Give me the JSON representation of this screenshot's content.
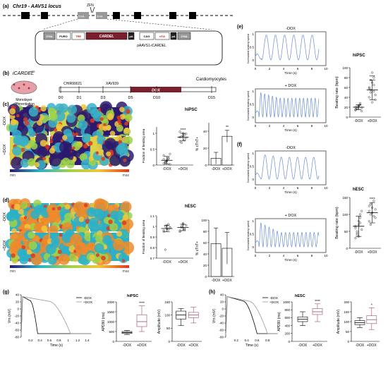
{
  "panels": {
    "a": {
      "label": "(a)",
      "title": "Chr19 - AAVS1 locus",
      "zfn": "ZFN",
      "boxes": [
        "5'HA",
        "PURO",
        "TRE",
        "CARDEL",
        "pA",
        "CAG",
        "rtTA",
        "pA",
        "3'HA"
      ],
      "homology": [
        "5'HA",
        "3'HA"
      ],
      "plasmid": "pAAVS1-iCARDEL"
    },
    "b": {
      "label": "(b)",
      "construct": "iCARDEL",
      "construct_sup": "OE",
      "dish_label": [
        "Monolayer",
        "differentiation"
      ],
      "drugs": [
        "CHIR99021",
        "XAV939",
        "DOX"
      ],
      "days": [
        "D0",
        "D1",
        "D3",
        "D5",
        "D10",
        "D15"
      ],
      "end_label": "Cardiomyocytes"
    },
    "c": {
      "label": "(c)",
      "rows": [
        "-DOX",
        "+DOX"
      ],
      "cell": "hiPSC",
      "colorbar": {
        "min": "min",
        "max": "max"
      }
    },
    "d": {
      "label": "(d)",
      "rows": [
        "-DOX",
        "+DOX"
      ],
      "cell": "hESC",
      "colorbar": {
        "min": "min",
        "max": "max"
      }
    },
    "e": {
      "label": "(e)",
      "top": "-DOX",
      "bottom": "+ DOX",
      "cell": "hiPSC"
    },
    "f": {
      "label": "(f)",
      "top": "-DOX",
      "bottom": "+ DOX",
      "cell": "hESC"
    },
    "g": {
      "label": "(g)",
      "cell": "hiPSC"
    },
    "h": {
      "label": "(h)",
      "cell": "hESC"
    }
  },
  "chart_data": [
    {
      "id": "c_area",
      "type": "scatter",
      "ylabel": "Fraction of beating area",
      "categories": [
        "-DOX",
        "+DOX"
      ],
      "ylim": [
        0,
        1.2
      ],
      "yticks": [
        0,
        0.5,
        1.0
      ],
      "means": [
        0.15,
        0.88
      ],
      "sd": [
        0.12,
        0.12
      ],
      "sig": "****",
      "points": [
        [
          0.05,
          0.1,
          0.12,
          0.2,
          0.35,
          0.18,
          0.08,
          0.15,
          0.22,
          0.02,
          0.3,
          0.1
        ],
        [
          0.75,
          0.9,
          1.0,
          0.95,
          0.85,
          1.05,
          0.7,
          0.92,
          0.8,
          0.98,
          0.88
        ]
      ]
    },
    {
      "id": "c_ctnt",
      "type": "bar",
      "ylabel": "% cTnT+",
      "categories": [
        "-DOX",
        "+DOX"
      ],
      "ylim": [
        0,
        50
      ],
      "yticks": [
        0,
        20,
        40
      ],
      "values": [
        8,
        34
      ],
      "err": [
        7,
        7
      ],
      "sig": "**"
    },
    {
      "id": "d_area",
      "type": "scatter",
      "ylabel": "Fraction of beating area",
      "categories": [
        "-DOX",
        "+DOX"
      ],
      "ylim": [
        0.7,
        1.1
      ],
      "yticks": [
        0.7,
        0.8,
        0.9,
        1.0,
        1.1
      ],
      "means": [
        0.98,
        0.99
      ],
      "sd": [
        0.03,
        0.03
      ],
      "points": [
        [
          0.95,
          1.0,
          0.98,
          1.02,
          0.99,
          0.96,
          0.78,
          1.01,
          0.97,
          0.99
        ],
        [
          0.96,
          1.0,
          1.02,
          0.98,
          1.01,
          0.95,
          0.99,
          1.03,
          0.97
        ]
      ]
    },
    {
      "id": "d_ctnt",
      "type": "bar",
      "ylabel": "% cTnT+",
      "categories": [
        "-DOX",
        "+DOX"
      ],
      "ylim": [
        0,
        100
      ],
      "yticks": [
        0,
        20,
        40,
        60,
        80,
        100
      ],
      "values": [
        58,
        50
      ],
      "err": [
        28,
        28
      ]
    },
    {
      "id": "e_minus",
      "type": "line",
      "ylabel": "Normalized beating speed",
      "xlabel": "Time (s)",
      "xlim": [
        0,
        10
      ],
      "ylim": [
        -0.2,
        1.1
      ],
      "xticks": [
        0,
        2,
        4,
        6,
        8,
        10
      ],
      "yticks": [
        0,
        0.5,
        1
      ],
      "period": 1.3,
      "start": 0.9,
      "decay": 0.0
    },
    {
      "id": "e_plus",
      "type": "line",
      "ylabel": "Normalized beating speed",
      "xlabel": "Time (s)",
      "xlim": [
        0,
        10
      ],
      "ylim": [
        -0.2,
        1.1
      ],
      "xticks": [
        0,
        2,
        4,
        6,
        8,
        10
      ],
      "yticks": [
        0,
        0.5,
        1
      ],
      "period": 0.55,
      "start": 0.5,
      "decay": 0.4
    },
    {
      "id": "e_rate",
      "type": "scatter",
      "ylabel": "Beating rate (bpm)",
      "categories": [
        "-DOX",
        "+DOX"
      ],
      "ylim": [
        0,
        100
      ],
      "yticks": [
        0,
        20,
        40,
        60,
        80,
        100
      ],
      "means": [
        20,
        55
      ],
      "sd": [
        5,
        20
      ],
      "sig": "****",
      "points": [
        [
          15,
          18,
          22,
          25,
          12,
          20,
          17,
          23,
          28,
          19,
          14,
          21
        ],
        [
          40,
          55,
          70,
          80,
          35,
          60,
          50,
          90,
          65,
          45,
          58,
          75,
          30,
          52
        ]
      ]
    },
    {
      "id": "f_minus",
      "type": "line",
      "ylabel": "Normalized beating speed",
      "xlabel": "Time (s)",
      "xlim": [
        0,
        10
      ],
      "ylim": [
        -0.2,
        1.1
      ],
      "xticks": [
        0,
        2,
        4,
        6,
        8,
        10
      ],
      "yticks": [
        0,
        0.5,
        1
      ],
      "period": 1.15,
      "start": 0.8,
      "decay": 0.2
    },
    {
      "id": "f_plus",
      "type": "line",
      "ylabel": "Normalized beating speed",
      "xlabel": "Time (s)",
      "xlim": [
        0,
        10
      ],
      "ylim": [
        -0.2,
        1.1
      ],
      "xticks": [
        0,
        2,
        4,
        6,
        8,
        10
      ],
      "yticks": [
        0,
        0.5,
        1
      ],
      "period": 0.58,
      "start": 0.5,
      "decay": 0.7
    },
    {
      "id": "f_rate",
      "type": "scatter",
      "ylabel": "Beating rate (bpm)",
      "categories": [
        "-DOX",
        "+DOX"
      ],
      "ylim": [
        0,
        150
      ],
      "yticks": [
        0,
        50,
        100,
        150
      ],
      "means": [
        65,
        105
      ],
      "sd": [
        30,
        30
      ],
      "sig": "****",
      "points": [
        [
          30,
          50,
          70,
          90,
          110,
          60,
          40,
          80,
          100,
          55,
          65,
          45,
          35,
          75
        ],
        [
          80,
          100,
          120,
          140,
          90,
          110,
          130,
          105,
          95,
          115,
          125,
          70
        ]
      ]
    },
    {
      "id": "g_ap",
      "type": "line",
      "xlabel": "Time (s)",
      "ylabel": "Vm (mV)",
      "xlim": [
        0,
        1.5
      ],
      "ylim": [
        -80,
        40
      ],
      "xticks": [
        0.2,
        0.4,
        0.6,
        0.8,
        1.0,
        1.2,
        1.4
      ],
      "yticks": [
        -80,
        -60,
        -40,
        -20,
        0,
        20,
        40
      ],
      "series": [
        {
          "name": "-DOX",
          "apd": 0.35
        },
        {
          "name": "+DOX",
          "apd": 1.05
        }
      ]
    },
    {
      "id": "g_apd",
      "type": "box",
      "ylabel": "APD90 (ms)",
      "categories": [
        "-DOX",
        "+DOX"
      ],
      "ylim": [
        0,
        2000
      ],
      "yticks": [
        0,
        500,
        1000,
        1500,
        2000
      ],
      "box": [
        [
          350,
          400,
          450,
          500,
          550
        ],
        [
          500,
          750,
          1000,
          1350,
          1800
        ]
      ],
      "sig": "****"
    },
    {
      "id": "g_amp",
      "type": "box",
      "ylabel": "Amplitude (mV)",
      "categories": [
        "-DOX",
        "+DOX"
      ],
      "ylim": [
        0,
        150
      ],
      "yticks": [
        0,
        50,
        100,
        150
      ],
      "box": [
        [
          60,
          85,
          100,
          115,
          125
        ],
        [
          70,
          90,
          100,
          110,
          130
        ]
      ]
    },
    {
      "id": "h_ap",
      "type": "line",
      "xlabel": "Time (s)",
      "ylabel": "Vm (mV)",
      "xlim": [
        0,
        1
      ],
      "ylim": [
        -80,
        40
      ],
      "xticks": [
        0.2,
        0.4,
        0.6,
        0.8
      ],
      "yticks": [
        -80,
        -60,
        -40,
        -20,
        0,
        20,
        40
      ],
      "series": [
        {
          "name": "-DOX",
          "apd": 0.6
        },
        {
          "name": "+DOX",
          "apd": 0.8
        }
      ]
    },
    {
      "id": "h_apd",
      "type": "box",
      "ylabel": "APD90 (ms)",
      "categories": [
        "-DOX",
        "+DOX"
      ],
      "ylim": [
        0,
        1000
      ],
      "yticks": [
        0,
        200,
        400,
        600,
        800,
        1000
      ],
      "box": [
        [
          400,
          500,
          560,
          620,
          750
        ],
        [
          500,
          680,
          750,
          830,
          950
        ]
      ],
      "sig": "****"
    },
    {
      "id": "h_amp",
      "type": "box",
      "ylabel": "Amplitude (mV)",
      "categories": [
        "-DOX",
        "+DOX"
      ],
      "ylim": [
        0,
        200
      ],
      "yticks": [
        0,
        50,
        100,
        150,
        200
      ],
      "box": [
        [
          70,
          85,
          95,
          105,
          120
        ],
        [
          60,
          90,
          110,
          130,
          170
        ]
      ],
      "sig": "*"
    }
  ],
  "colors": {
    "blue": "#6b8fd6",
    "dox": "#7a1f2b",
    "heatLow": "#2b1a6e",
    "heatHigh": "#e03a1e"
  }
}
